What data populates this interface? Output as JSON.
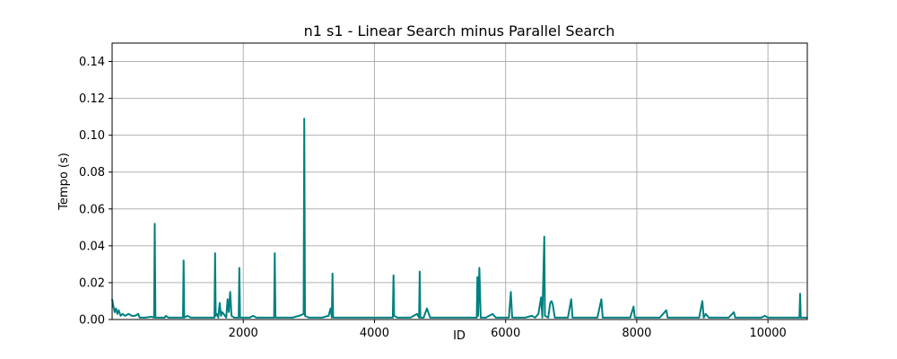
{
  "chart_data": {
    "type": "line",
    "title": "n1 s1 - Linear Search minus Parallel Search",
    "xlabel": "ID",
    "ylabel": "Tempo (s)",
    "xlim": [
      0,
      10600
    ],
    "ylim": [
      0,
      0.15
    ],
    "x_ticks": [
      {
        "value": 2000,
        "label": "2000"
      },
      {
        "value": 4000,
        "label": "4000"
      },
      {
        "value": 6000,
        "label": "6000"
      },
      {
        "value": 8000,
        "label": "8000"
      },
      {
        "value": 10000,
        "label": "10000"
      }
    ],
    "y_ticks": [
      {
        "value": 0.0,
        "label": "0.00"
      },
      {
        "value": 0.02,
        "label": "0.02"
      },
      {
        "value": 0.04,
        "label": "0.04"
      },
      {
        "value": 0.06,
        "label": "0.06"
      },
      {
        "value": 0.08,
        "label": "0.08"
      },
      {
        "value": 0.1,
        "label": "0.10"
      },
      {
        "value": 0.12,
        "label": "0.12"
      },
      {
        "value": 0.14,
        "label": "0.14"
      }
    ],
    "grid": true,
    "series": [
      {
        "color": "#008080",
        "points": [
          [
            0,
            0.011
          ],
          [
            20,
            0.007
          ],
          [
            40,
            0.004
          ],
          [
            60,
            0.006
          ],
          [
            80,
            0.003
          ],
          [
            100,
            0.005
          ],
          [
            130,
            0.002
          ],
          [
            160,
            0.003
          ],
          [
            200,
            0.002
          ],
          [
            250,
            0.003
          ],
          [
            300,
            0.002
          ],
          [
            350,
            0.002
          ],
          [
            400,
            0.003
          ],
          [
            420,
            0.001
          ],
          [
            500,
            0.001
          ],
          [
            600,
            0.0015
          ],
          [
            640,
            0.001
          ],
          [
            650,
            0.052
          ],
          [
            660,
            0.001
          ],
          [
            700,
            0.001
          ],
          [
            800,
            0.001
          ],
          [
            820,
            0.002
          ],
          [
            860,
            0.001
          ],
          [
            1000,
            0.001
          ],
          [
            1080,
            0.001
          ],
          [
            1090,
            0.032
          ],
          [
            1100,
            0.001
          ],
          [
            1150,
            0.002
          ],
          [
            1200,
            0.001
          ],
          [
            1300,
            0.001
          ],
          [
            1400,
            0.001
          ],
          [
            1500,
            0.001
          ],
          [
            1560,
            0.001
          ],
          [
            1570,
            0.036
          ],
          [
            1580,
            0.002
          ],
          [
            1600,
            0.003
          ],
          [
            1620,
            0.001
          ],
          [
            1640,
            0.009
          ],
          [
            1660,
            0.002
          ],
          [
            1680,
            0.004
          ],
          [
            1700,
            0.003
          ],
          [
            1740,
            0.001
          ],
          [
            1760,
            0.011
          ],
          [
            1780,
            0.004
          ],
          [
            1800,
            0.015
          ],
          [
            1820,
            0.002
          ],
          [
            1860,
            0.001
          ],
          [
            1930,
            0.001
          ],
          [
            1940,
            0.028
          ],
          [
            1950,
            0.001
          ],
          [
            2000,
            0.001
          ],
          [
            2100,
            0.001
          ],
          [
            2150,
            0.002
          ],
          [
            2200,
            0.001
          ],
          [
            2300,
            0.001
          ],
          [
            2400,
            0.001
          ],
          [
            2470,
            0.001
          ],
          [
            2480,
            0.036
          ],
          [
            2490,
            0.001
          ],
          [
            2550,
            0.001
          ],
          [
            2650,
            0.001
          ],
          [
            2750,
            0.001
          ],
          [
            2850,
            0.002
          ],
          [
            2920,
            0.003
          ],
          [
            2930,
            0.109
          ],
          [
            2940,
            0.002
          ],
          [
            3000,
            0.001
          ],
          [
            3100,
            0.001
          ],
          [
            3200,
            0.001
          ],
          [
            3300,
            0.002
          ],
          [
            3330,
            0.006
          ],
          [
            3350,
            0.001
          ],
          [
            3360,
            0.025
          ],
          [
            3370,
            0.001
          ],
          [
            3450,
            0.001
          ],
          [
            3550,
            0.001
          ],
          [
            3650,
            0.001
          ],
          [
            3750,
            0.001
          ],
          [
            3850,
            0.001
          ],
          [
            3950,
            0.001
          ],
          [
            4050,
            0.001
          ],
          [
            4150,
            0.001
          ],
          [
            4250,
            0.001
          ],
          [
            4280,
            0.001
          ],
          [
            4290,
            0.024
          ],
          [
            4300,
            0.002
          ],
          [
            4350,
            0.001
          ],
          [
            4450,
            0.001
          ],
          [
            4550,
            0.001
          ],
          [
            4650,
            0.003
          ],
          [
            4680,
            0.001
          ],
          [
            4690,
            0.026
          ],
          [
            4700,
            0.001
          ],
          [
            4750,
            0.001
          ],
          [
            4800,
            0.006
          ],
          [
            4850,
            0.001
          ],
          [
            4950,
            0.001
          ],
          [
            5050,
            0.001
          ],
          [
            5150,
            0.001
          ],
          [
            5250,
            0.001
          ],
          [
            5350,
            0.001
          ],
          [
            5450,
            0.001
          ],
          [
            5560,
            0.001
          ],
          [
            5570,
            0.023
          ],
          [
            5580,
            0.002
          ],
          [
            5600,
            0.028
          ],
          [
            5620,
            0.001
          ],
          [
            5700,
            0.001
          ],
          [
            5800,
            0.003
          ],
          [
            5850,
            0.001
          ],
          [
            5950,
            0.001
          ],
          [
            6050,
            0.001
          ],
          [
            6080,
            0.015
          ],
          [
            6100,
            0.001
          ],
          [
            6200,
            0.001
          ],
          [
            6300,
            0.001
          ],
          [
            6400,
            0.002
          ],
          [
            6450,
            0.001
          ],
          [
            6500,
            0.003
          ],
          [
            6540,
            0.012
          ],
          [
            6560,
            0.001
          ],
          [
            6590,
            0.045
          ],
          [
            6600,
            0.002
          ],
          [
            6650,
            0.001
          ],
          [
            6680,
            0.009
          ],
          [
            6700,
            0.01
          ],
          [
            6720,
            0.008
          ],
          [
            6750,
            0.001
          ],
          [
            6850,
            0.001
          ],
          [
            6950,
            0.001
          ],
          [
            7000,
            0.011
          ],
          [
            7020,
            0.001
          ],
          [
            7100,
            0.001
          ],
          [
            7200,
            0.001
          ],
          [
            7300,
            0.001
          ],
          [
            7400,
            0.001
          ],
          [
            7460,
            0.011
          ],
          [
            7480,
            0.001
          ],
          [
            7600,
            0.001
          ],
          [
            7700,
            0.001
          ],
          [
            7800,
            0.001
          ],
          [
            7900,
            0.001
          ],
          [
            7950,
            0.007
          ],
          [
            7970,
            0.001
          ],
          [
            8050,
            0.001
          ],
          [
            8150,
            0.001
          ],
          [
            8250,
            0.001
          ],
          [
            8350,
            0.001
          ],
          [
            8450,
            0.005
          ],
          [
            8470,
            0.001
          ],
          [
            8550,
            0.001
          ],
          [
            8650,
            0.001
          ],
          [
            8750,
            0.001
          ],
          [
            8850,
            0.001
          ],
          [
            8950,
            0.001
          ],
          [
            9000,
            0.01
          ],
          [
            9020,
            0.001
          ],
          [
            9050,
            0.003
          ],
          [
            9100,
            0.001
          ],
          [
            9200,
            0.001
          ],
          [
            9300,
            0.001
          ],
          [
            9400,
            0.001
          ],
          [
            9480,
            0.004
          ],
          [
            9500,
            0.001
          ],
          [
            9600,
            0.001
          ],
          [
            9700,
            0.001
          ],
          [
            9800,
            0.001
          ],
          [
            9900,
            0.001
          ],
          [
            9950,
            0.002
          ],
          [
            10000,
            0.001
          ],
          [
            10100,
            0.001
          ],
          [
            10200,
            0.001
          ],
          [
            10300,
            0.001
          ],
          [
            10400,
            0.001
          ],
          [
            10480,
            0.001
          ],
          [
            10490,
            0.014
          ],
          [
            10500,
            0.001
          ],
          [
            10600,
            0.001
          ]
        ]
      }
    ]
  }
}
